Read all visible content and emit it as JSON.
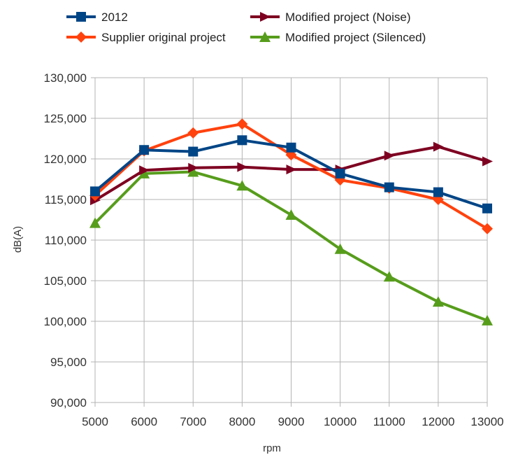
{
  "chart_data": {
    "type": "line",
    "title": "",
    "xlabel": "rpm",
    "ylabel": "dB(A)",
    "x": [
      5000,
      6000,
      7000,
      8000,
      9000,
      10000,
      11000,
      12000,
      13000
    ],
    "x_tick_labels": [
      "5000",
      "6000",
      "7000",
      "8000",
      "9000",
      "10000",
      "11000",
      "12000",
      "13000"
    ],
    "ylim": [
      90000,
      130000
    ],
    "y_ticks": [
      90000,
      95000,
      100000,
      105000,
      110000,
      115000,
      120000,
      125000,
      130000
    ],
    "y_tick_labels": [
      "90,000",
      "95,000",
      "100,000",
      "105,000",
      "110,000",
      "115,000",
      "120,000",
      "125,000",
      "130,000"
    ],
    "grid": true,
    "legend_position": "top",
    "series": [
      {
        "name": "2012",
        "color": "#004586",
        "marker": "square",
        "values": [
          116000,
          121100,
          120900,
          122300,
          121400,
          118200,
          116500,
          115900,
          113900
        ]
      },
      {
        "name": "Modified project (Noise)",
        "color": "#7e0021",
        "marker": "arrow-right",
        "values": [
          114900,
          118600,
          118900,
          119000,
          118700,
          118700,
          120400,
          121500,
          119700
        ]
      },
      {
        "name": "Supplier original project",
        "color": "#ff420e",
        "marker": "diamond",
        "values": [
          115500,
          121000,
          123200,
          124300,
          120500,
          117400,
          116400,
          115000,
          111400
        ]
      },
      {
        "name": "Modified project (Silenced)",
        "color": "#579d1c",
        "marker": "triangle",
        "values": [
          112100,
          118200,
          118400,
          116700,
          113100,
          108900,
          105500,
          102400,
          100100
        ]
      }
    ]
  }
}
